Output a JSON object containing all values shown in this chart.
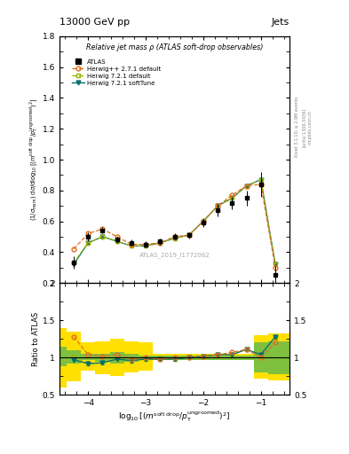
{
  "title_top": "13000 GeV pp",
  "title_right": "Jets",
  "main_title": "Relative jet mass ρ (ATLAS soft-drop observables)",
  "watermark": "ATLAS_2019_I1772062",
  "rivet_text": "Rivet 3.1.10; ≥ 2.9M events",
  "arxiv_text": "[arXiv:1306.3436]",
  "mcplots_text": "mcplots.cern.ch",
  "xlim": [
    -4.5,
    -0.5
  ],
  "ylim_main": [
    0.2,
    1.8
  ],
  "ylim_ratio": [
    0.5,
    2.0
  ],
  "yticks_main": [
    0.2,
    0.4,
    0.6,
    0.8,
    1.0,
    1.2,
    1.4,
    1.6,
    1.8
  ],
  "yticks_ratio": [
    0.5,
    1.0,
    1.5,
    2.0
  ],
  "xticks": [
    -4,
    -3,
    -2,
    -1
  ],
  "atlas_x": [
    -4.25,
    -4.0,
    -3.75,
    -3.5,
    -3.25,
    -3.0,
    -2.75,
    -2.5,
    -2.25,
    -2.0,
    -1.75,
    -1.5,
    -1.25,
    -1.0,
    -0.75
  ],
  "atlas_y": [
    0.33,
    0.5,
    0.54,
    0.48,
    0.46,
    0.45,
    0.47,
    0.5,
    0.51,
    0.59,
    0.67,
    0.72,
    0.75,
    0.84,
    0.25
  ],
  "atlas_yerr_lo": [
    0.04,
    0.03,
    0.02,
    0.02,
    0.02,
    0.02,
    0.02,
    0.02,
    0.02,
    0.03,
    0.04,
    0.04,
    0.05,
    0.08,
    0.06
  ],
  "atlas_yerr_hi": [
    0.04,
    0.03,
    0.02,
    0.02,
    0.02,
    0.02,
    0.02,
    0.02,
    0.02,
    0.03,
    0.04,
    0.04,
    0.05,
    0.08,
    0.06
  ],
  "herwig_pp_x": [
    -4.25,
    -4.0,
    -3.75,
    -3.5,
    -3.25,
    -3.0,
    -2.75,
    -2.5,
    -2.25,
    -2.0,
    -1.75,
    -1.5,
    -1.25,
    -1.0,
    -0.75
  ],
  "herwig_pp_y": [
    0.42,
    0.52,
    0.55,
    0.5,
    0.45,
    0.45,
    0.46,
    0.5,
    0.51,
    0.6,
    0.7,
    0.77,
    0.83,
    0.84,
    0.3
  ],
  "herwig721_def_x": [
    -4.25,
    -4.0,
    -3.75,
    -3.5,
    -3.25,
    -3.0,
    -2.75,
    -2.5,
    -2.25,
    -2.0,
    -1.75,
    -1.5,
    -1.25,
    -1.0,
    -0.75
  ],
  "herwig721_def_y": [
    0.33,
    0.46,
    0.5,
    0.47,
    0.44,
    0.44,
    0.46,
    0.49,
    0.51,
    0.6,
    0.7,
    0.75,
    0.83,
    0.87,
    0.32
  ],
  "herwig721_soft_x": [
    -4.25,
    -4.0,
    -3.75,
    -3.5,
    -3.25,
    -3.0,
    -2.75,
    -2.5,
    -2.25,
    -2.0,
    -1.75,
    -1.5,
    -1.25,
    -1.0,
    -0.75
  ],
  "herwig721_soft_y": [
    0.32,
    0.46,
    0.5,
    0.47,
    0.44,
    0.44,
    0.46,
    0.49,
    0.51,
    0.6,
    0.7,
    0.75,
    0.83,
    0.87,
    0.32
  ],
  "ratio_hppdef_y": [
    1.28,
    1.04,
    1.02,
    1.04,
    0.98,
    1.0,
    0.98,
    1.0,
    1.0,
    1.02,
    1.04,
    1.07,
    1.11,
    1.0,
    1.2
  ],
  "ratio_h721def_y": [
    1.0,
    0.92,
    0.93,
    0.98,
    0.96,
    0.98,
    0.98,
    0.98,
    1.0,
    1.02,
    1.04,
    1.04,
    1.11,
    1.04,
    1.28
  ],
  "ratio_h721soft_y": [
    0.97,
    0.92,
    0.93,
    0.98,
    0.96,
    0.98,
    0.98,
    0.98,
    1.0,
    1.02,
    1.04,
    1.04,
    1.11,
    1.04,
    1.28
  ],
  "band_x": [
    -4.5,
    -4.25,
    -4.0,
    -3.75,
    -3.5,
    -3.25,
    -3.0,
    -2.75,
    -2.5,
    -2.25,
    -2.0,
    -1.75,
    -1.5,
    -1.25,
    -1.0,
    -0.75,
    -0.5
  ],
  "band_green_lo": [
    0.88,
    0.92,
    0.97,
    0.95,
    0.92,
    0.95,
    0.97,
    0.97,
    0.97,
    0.97,
    0.97,
    0.97,
    0.97,
    0.97,
    0.8,
    0.78,
    0.78
  ],
  "band_green_hi": [
    1.15,
    1.1,
    1.05,
    1.05,
    1.08,
    1.05,
    1.03,
    1.03,
    1.03,
    1.03,
    1.03,
    1.03,
    1.03,
    1.03,
    1.2,
    1.22,
    1.22
  ],
  "band_yellow_lo": [
    0.6,
    0.68,
    0.82,
    0.78,
    0.75,
    0.8,
    0.82,
    0.97,
    0.97,
    0.97,
    0.97,
    0.97,
    0.97,
    0.97,
    0.72,
    0.7,
    0.7
  ],
  "band_yellow_hi": [
    1.4,
    1.35,
    1.2,
    1.22,
    1.25,
    1.22,
    1.2,
    1.05,
    1.05,
    1.05,
    1.05,
    1.05,
    1.05,
    1.05,
    1.3,
    1.32,
    1.32
  ],
  "color_atlas": "#000000",
  "color_herwig_pp": "#e07020",
  "color_herwig721_def": "#a0b000",
  "color_herwig721_soft": "#007070",
  "color_green_band": "#80c040",
  "color_yellow_band": "#ffe000",
  "background_color": "#ffffff"
}
